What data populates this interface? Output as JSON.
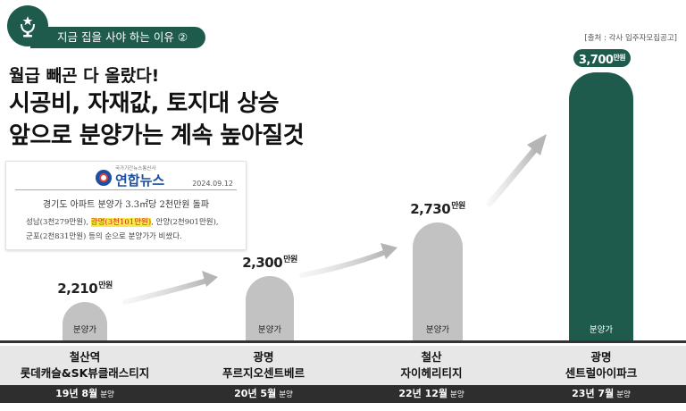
{
  "topic": "지금 집을 사야 하는 이유 ②",
  "source": "[출처 : 각사 입주자모집공고]",
  "headline": {
    "line1": "월급 빼곤 다 올랐다!",
    "line2": "시공비, 자재값, 토지대 상승",
    "line3": "앞으로 분양가는 계속 높아질것"
  },
  "news": {
    "brand": "연합뉴스",
    "brand_sub": "국가기간뉴스통신사",
    "date": "2024.09.12",
    "title": "경기도 아파트 분양가 3.3㎡당 2천만원 돌파",
    "body_line1_a": "성남(3천279만원), ",
    "body_line1_hl": "광명(3천101만원)",
    "body_line1_b": ", 안양(2천901만원),",
    "body_line2": "군포(2천831만원) 등의 순으로 분양가가 비쌌다."
  },
  "colors": {
    "accent": "#1e5b4c",
    "bar_gray": "#c2c2c2",
    "highlight": "#f7e94a",
    "highlight_text": "#d82a2a"
  },
  "chart_data": {
    "type": "bar",
    "unit": "만원",
    "ylim": [
      0,
      3700
    ],
    "categories": [
      {
        "region": "철산역",
        "name": "롯데캐슬&SK뷰클래스티지",
        "date": "19년 8월",
        "date_suffix": "분양"
      },
      {
        "region": "광명",
        "name": "푸르지오센트베르",
        "date": "20년 5월",
        "date_suffix": "분양"
      },
      {
        "region": "철산",
        "name": "자이헤리티지",
        "date": "22년 12월",
        "date_suffix": "분양"
      },
      {
        "region": "광명",
        "name": "센트럴아이파크",
        "date": "23년 7월",
        "date_suffix": "분양"
      }
    ],
    "values": [
      2210,
      2300,
      2730,
      3700
    ],
    "value_labels": [
      "2,210",
      "2,300",
      "2,730",
      "3,700"
    ],
    "bar_label": "분양가",
    "highlight_index": 3
  }
}
